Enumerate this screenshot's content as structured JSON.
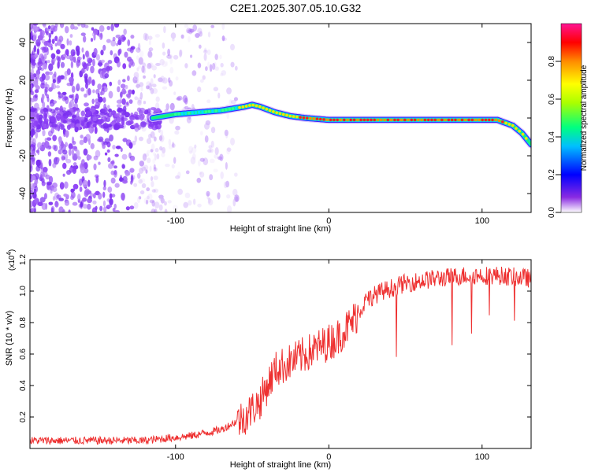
{
  "title": "C2E1.2025.307.05.10.G32",
  "top_chart": {
    "type": "heatmap",
    "xlabel": "Height of straight line (km)",
    "ylabel": "Frequency (Hz)",
    "xlim": [
      -195,
      132
    ],
    "ylim": [
      -50,
      50
    ],
    "xticks": [
      -100,
      0,
      100
    ],
    "yticks": [
      -40,
      -20,
      0,
      20,
      40
    ],
    "colorbar": {
      "label": "Normalized spectral amplitude",
      "range": [
        0,
        1
      ],
      "ticks": [
        0.0,
        0.2,
        0.4,
        0.6,
        0.8
      ]
    },
    "ridge": {
      "x": [
        -115,
        -100,
        -85,
        -70,
        -55,
        -50,
        -45,
        -35,
        -25,
        -15,
        0,
        20,
        60,
        90,
        110,
        120,
        126,
        132
      ],
      "y": [
        0,
        2,
        3,
        4,
        6,
        7,
        6,
        3,
        1,
        0,
        -1,
        -1,
        -1,
        -1,
        -1,
        -4,
        -8,
        -14
      ]
    }
  },
  "bottom_chart": {
    "type": "line",
    "xlabel": "Height of straight line (km)",
    "ylabel": "SNR (10 * v/v)",
    "multiplier": "(x10",
    "multiplier_exp": "4",
    "multiplier_close": ")",
    "xlim": [
      -195,
      132
    ],
    "ylim": [
      0,
      1.2
    ],
    "xticks": [
      -100,
      0,
      100
    ],
    "yticks": [
      0.2,
      0.4,
      0.6,
      0.8,
      1.0,
      1.2
    ],
    "trend": {
      "x": [
        -195,
        -120,
        -90,
        -70,
        -55,
        -45,
        -35,
        -25,
        -15,
        -5,
        5,
        15,
        25,
        35,
        50,
        70,
        90,
        110,
        132
      ],
      "y": [
        0.05,
        0.05,
        0.08,
        0.12,
        0.2,
        0.3,
        0.5,
        0.55,
        0.6,
        0.65,
        0.7,
        0.8,
        0.95,
        1.0,
        1.05,
        1.08,
        1.1,
        1.1,
        1.08
      ]
    }
  }
}
